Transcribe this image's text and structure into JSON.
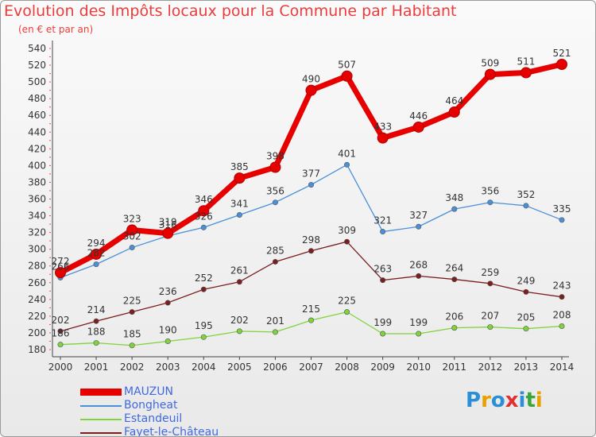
{
  "title": "Evolution des Impôts locaux pour la Commune par Habitant",
  "subtitle": "(en € et par an)",
  "logo": {
    "text": "Proxiti",
    "letters": [
      "P",
      "r",
      "o",
      "x",
      "i",
      "t",
      "i"
    ],
    "colors": [
      "#2a8fd6",
      "#e8a100",
      "#2a8fd6",
      "#e03030",
      "#2a8fd6",
      "#3aa63a",
      "#e8a100"
    ]
  },
  "chart_data": {
    "type": "line",
    "x": [
      "2000",
      "2001",
      "2002",
      "2003",
      "2004",
      "2005",
      "2006",
      "2007",
      "2008",
      "2009",
      "2010",
      "2011",
      "2012",
      "2013",
      "2014"
    ],
    "ylim": [
      180,
      540
    ],
    "yticks": [
      180,
      200,
      220,
      240,
      260,
      280,
      300,
      320,
      340,
      360,
      380,
      400,
      420,
      440,
      460,
      480,
      500,
      520,
      540
    ],
    "grid": false,
    "legend_position": "bottom-left",
    "series": [
      {
        "name": "MAUZUN",
        "color": "#e60000",
        "values": [
          272,
          294,
          323,
          319,
          346,
          385,
          398,
          490,
          507,
          433,
          446,
          464,
          509,
          511,
          521
        ]
      },
      {
        "name": "Bongheat",
        "color": "#4a90d9",
        "values": [
          266,
          282,
          302,
          316,
          326,
          341,
          356,
          377,
          401,
          321,
          327,
          348,
          356,
          352,
          335
        ]
      },
      {
        "name": "Estandeuil",
        "color": "#7fd33c",
        "values": [
          186,
          188,
          185,
          190,
          195,
          202,
          201,
          215,
          225,
          199,
          199,
          206,
          207,
          205,
          208
        ]
      },
      {
        "name": "Fayet-le-Château",
        "color": "#7a1f1f",
        "values": [
          202,
          214,
          225,
          236,
          252,
          261,
          285,
          298,
          309,
          263,
          268,
          264,
          259,
          249,
          243
        ]
      }
    ]
  }
}
